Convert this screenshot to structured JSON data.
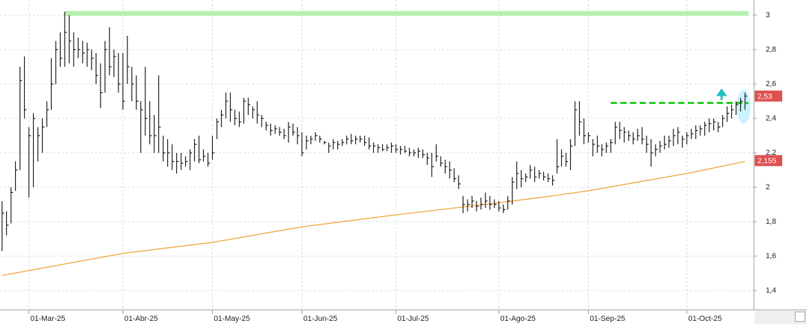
{
  "chart_data": {
    "type": "ohlc",
    "low": [
      1.63,
      1.72,
      1.79,
      1.98,
      2.1,
      2.4,
      1.94,
      2.0,
      2.15,
      2.2,
      2.35,
      2.45,
      2.6,
      2.7,
      2.7,
      2.72,
      2.7,
      2.75,
      2.72,
      2.7,
      2.68,
      2.6,
      2.46,
      2.55,
      2.65,
      2.64,
      2.55,
      2.45,
      2.6,
      2.5,
      2.45,
      2.2,
      2.3,
      2.25,
      2.2,
      2.2,
      2.15,
      2.12,
      2.1,
      2.08,
      2.1,
      2.12,
      2.1,
      2.15,
      2.14,
      2.15,
      2.12,
      2.16,
      2.28,
      2.35,
      2.4,
      2.38,
      2.36,
      2.35,
      2.37,
      2.42,
      2.4,
      2.37,
      2.35,
      2.33,
      2.3,
      2.31,
      2.3,
      2.28,
      2.26,
      2.3,
      2.25,
      2.18,
      2.22,
      2.25,
      2.27,
      2.26,
      2.25,
      2.2,
      2.22,
      2.22,
      2.24,
      2.25,
      2.25,
      2.25,
      2.26,
      2.24,
      2.22,
      2.2,
      2.2,
      2.21,
      2.21,
      2.2,
      2.2,
      2.19,
      2.2,
      2.18,
      2.18,
      2.17,
      2.17,
      2.13,
      2.06,
      2.15,
      2.12,
      2.08,
      2.05,
      2.03,
      1.99,
      1.85,
      1.86,
      1.88,
      1.86,
      1.87,
      1.88,
      1.87,
      1.88,
      1.86,
      1.85,
      1.87,
      1.9,
      1.99,
      2.0,
      2.03,
      2.05,
      2.03,
      2.05,
      2.04,
      2.03,
      2.01,
      2.08,
      2.12,
      2.12,
      2.1,
      2.24,
      2.3,
      2.25,
      2.26,
      2.18,
      2.2,
      2.18,
      2.2,
      2.2,
      2.25,
      2.28,
      2.26,
      2.27,
      2.25,
      2.27,
      2.25,
      2.2,
      2.12,
      2.18,
      2.2,
      2.22,
      2.23,
      2.24,
      2.25,
      2.23,
      2.25,
      2.28,
      2.28,
      2.3,
      2.3,
      2.32,
      2.33,
      2.32,
      2.35,
      2.38,
      2.4,
      2.42,
      2.44,
      2.45
    ],
    "high": [
      1.92,
      1.86,
      2.0,
      2.15,
      2.7,
      2.76,
      2.35,
      2.43,
      2.35,
      2.4,
      2.5,
      2.75,
      2.85,
      2.9,
      3.02,
      3.0,
      2.9,
      2.87,
      2.85,
      2.84,
      2.8,
      2.78,
      2.72,
      2.85,
      2.93,
      2.8,
      2.78,
      2.78,
      2.88,
      2.7,
      2.65,
      2.5,
      2.7,
      2.5,
      2.42,
      2.65,
      2.3,
      2.28,
      2.25,
      2.2,
      2.2,
      2.18,
      2.22,
      2.28,
      2.3,
      2.22,
      2.2,
      2.3,
      2.4,
      2.45,
      2.55,
      2.55,
      2.45,
      2.44,
      2.52,
      2.52,
      2.47,
      2.5,
      2.42,
      2.38,
      2.37,
      2.36,
      2.35,
      2.34,
      2.38,
      2.37,
      2.35,
      2.32,
      2.3,
      2.3,
      2.32,
      2.3,
      2.27,
      2.26,
      2.28,
      2.27,
      2.28,
      2.3,
      2.31,
      2.3,
      2.3,
      2.3,
      2.29,
      2.26,
      2.25,
      2.25,
      2.25,
      2.26,
      2.25,
      2.24,
      2.24,
      2.23,
      2.22,
      2.23,
      2.22,
      2.2,
      2.2,
      2.25,
      2.18,
      2.16,
      2.15,
      2.11,
      2.07,
      1.95,
      1.93,
      1.95,
      1.92,
      1.94,
      1.97,
      1.95,
      1.93,
      1.92,
      1.9,
      1.95,
      2.06,
      2.15,
      2.1,
      2.08,
      2.13,
      2.12,
      2.1,
      2.09,
      2.08,
      2.07,
      2.28,
      2.22,
      2.2,
      2.28,
      2.5,
      2.5,
      2.4,
      2.32,
      2.28,
      2.3,
      2.25,
      2.26,
      2.28,
      2.38,
      2.38,
      2.35,
      2.33,
      2.32,
      2.34,
      2.35,
      2.3,
      2.28,
      2.25,
      2.27,
      2.3,
      2.3,
      2.34,
      2.35,
      2.3,
      2.32,
      2.34,
      2.36,
      2.36,
      2.38,
      2.4,
      2.4,
      2.38,
      2.42,
      2.47,
      2.48,
      2.5,
      2.52,
      2.55
    ],
    "close": [
      1.85,
      1.78,
      1.97,
      2.1,
      2.62,
      2.45,
      2.3,
      2.4,
      2.3,
      2.35,
      2.45,
      2.6,
      2.8,
      2.75,
      2.9,
      2.85,
      2.8,
      2.8,
      2.78,
      2.8,
      2.75,
      2.65,
      2.55,
      2.8,
      2.7,
      2.76,
      2.6,
      2.5,
      2.7,
      2.6,
      2.5,
      2.45,
      2.4,
      2.3,
      2.3,
      2.35,
      2.2,
      2.2,
      2.15,
      2.15,
      2.14,
      2.15,
      2.2,
      2.25,
      2.16,
      2.18,
      2.14,
      2.2,
      2.38,
      2.42,
      2.5,
      2.45,
      2.4,
      2.38,
      2.5,
      2.48,
      2.45,
      2.42,
      2.4,
      2.36,
      2.33,
      2.34,
      2.32,
      2.3,
      2.35,
      2.32,
      2.3,
      2.2,
      2.27,
      2.28,
      2.3,
      2.28,
      2.26,
      2.24,
      2.26,
      2.25,
      2.26,
      2.28,
      2.27,
      2.28,
      2.28,
      2.26,
      2.24,
      2.24,
      2.23,
      2.22,
      2.23,
      2.24,
      2.22,
      2.22,
      2.21,
      2.2,
      2.2,
      2.21,
      2.19,
      2.17,
      2.12,
      2.18,
      2.14,
      2.12,
      2.1,
      2.05,
      2.02,
      1.9,
      1.9,
      1.92,
      1.89,
      1.9,
      1.92,
      1.9,
      1.9,
      1.88,
      1.87,
      1.92,
      2.03,
      2.08,
      2.05,
      2.06,
      2.1,
      2.06,
      2.08,
      2.06,
      2.05,
      2.04,
      2.12,
      2.18,
      2.15,
      2.24,
      2.45,
      2.38,
      2.3,
      2.3,
      2.25,
      2.24,
      2.22,
      2.24,
      2.26,
      2.35,
      2.33,
      2.32,
      2.3,
      2.28,
      2.3,
      2.28,
      2.25,
      2.2,
      2.22,
      2.24,
      2.25,
      2.27,
      2.3,
      2.32,
      2.28,
      2.3,
      2.31,
      2.33,
      2.34,
      2.36,
      2.37,
      2.38,
      2.35,
      2.4,
      2.43,
      2.45,
      2.48,
      2.5,
      2.53
    ],
    "moving_average": {
      "color": "#f0a030",
      "x": [
        0,
        27,
        47,
        67,
        88,
        111,
        123,
        131,
        153,
        166
      ],
      "values": [
        1.488,
        1.616,
        1.68,
        1.77,
        1.84,
        1.91,
        1.95,
        1.98,
        2.08,
        2.15
      ]
    },
    "bar_color": "#111111",
    "levels": [
      {
        "value": 3.01,
        "from": 14,
        "to": 166,
        "color": "#b8f0b0",
        "style": "band"
      },
      {
        "value": 2.49,
        "from": 136,
        "to": 166,
        "color": "#22cc22",
        "style": "dashed"
      }
    ],
    "price_tags": [
      {
        "value": 2.53,
        "label": "2,53",
        "color": "#e05050"
      },
      {
        "value": 2.155,
        "label": "2,155",
        "color": "#e05050"
      }
    ],
    "xlim": [
      -0.46,
      168
    ],
    "xticks": [
      {
        "value": 6,
        "label": "01-Mar-25"
      },
      {
        "value": 27,
        "label": "01-Abr-25"
      },
      {
        "value": 47,
        "label": "01-May-25"
      },
      {
        "value": 67,
        "label": "01-Jun-25"
      },
      {
        "value": 88,
        "label": "01-Jul-25"
      },
      {
        "value": 111,
        "label": "01-Ago-25"
      },
      {
        "value": 131,
        "label": "01-Sep-25"
      },
      {
        "value": 153,
        "label": "01-Oct-25"
      }
    ],
    "ylim": [
      1.288,
      3.088
    ],
    "yticks": [
      {
        "value": 1.4,
        "label": "1,4"
      },
      {
        "value": 1.6,
        "label": "1,6"
      },
      {
        "value": 1.8,
        "label": "1,8"
      },
      2,
      {
        "value": 2.2,
        "label": "2,2"
      },
      {
        "value": 2.4,
        "label": "2,4"
      },
      {
        "value": 2.6,
        "label": "2,6"
      },
      {
        "value": 2.8,
        "label": "2,8"
      },
      3
    ],
    "grid": true
  }
}
